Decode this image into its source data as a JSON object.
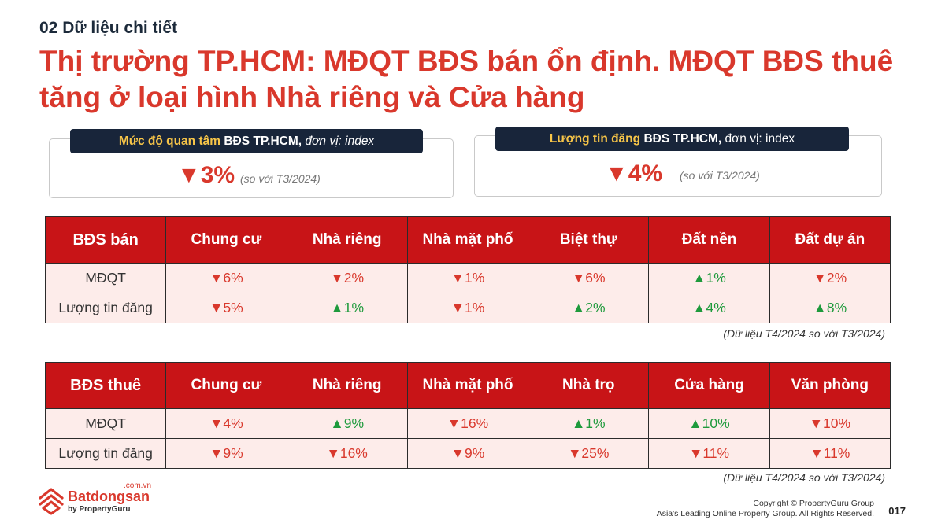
{
  "header": {
    "subtitle": "02 Dữ liệu chi tiết",
    "title": "Thị trường TP.HCM: MĐQT BĐS bán ổn định. MĐQT BĐS thuê tăng ở loại hình Nhà riêng và Cửa hàng"
  },
  "kpis": [
    {
      "label_highlight": "Mức độ quan tâm",
      "label_bold": "BĐS TP.HCM,",
      "label_rest": "đơn vị: index",
      "value": "▼3%",
      "note": "(so với T3/2024)"
    },
    {
      "label_highlight": "Lượng tin đăng",
      "label_bold": "BĐS TP.HCM,",
      "label_rest": "đơn vị: index",
      "value": "▼4%",
      "note": "(so với T3/2024)"
    }
  ],
  "sale_table": {
    "headers": [
      "BĐS bán",
      "Chung cư",
      "Nhà riêng",
      "Nhà mặt phố",
      "Biệt thự",
      "Đất nền",
      "Đất dự án"
    ],
    "rows": [
      {
        "label": "MĐQT",
        "cells": [
          {
            "text": "▼6%",
            "dir": "down"
          },
          {
            "text": "▼2%",
            "dir": "down"
          },
          {
            "text": "▼1%",
            "dir": "down"
          },
          {
            "text": "▼6%",
            "dir": "down"
          },
          {
            "text": "▲1%",
            "dir": "up"
          },
          {
            "text": "▼2%",
            "dir": "down"
          }
        ]
      },
      {
        "label": "Lượng tin đăng",
        "cells": [
          {
            "text": "▼5%",
            "dir": "down"
          },
          {
            "text": "▲1%",
            "dir": "up"
          },
          {
            "text": "▼1%",
            "dir": "down"
          },
          {
            "text": "▲2%",
            "dir": "up"
          },
          {
            "text": "▲4%",
            "dir": "up"
          },
          {
            "text": "▲8%",
            "dir": "up"
          }
        ]
      }
    ],
    "footnote": "(Dữ liệu T4/2024 so với T3/2024)"
  },
  "rent_table": {
    "headers": [
      "BĐS thuê",
      "Chung cư",
      "Nhà riêng",
      "Nhà mặt phố",
      "Nhà trọ",
      "Cửa hàng",
      "Văn phòng"
    ],
    "rows": [
      {
        "label": "MĐQT",
        "cells": [
          {
            "text": "▼4%",
            "dir": "down"
          },
          {
            "text": "▲9%",
            "dir": "up"
          },
          {
            "text": "▼16%",
            "dir": "down"
          },
          {
            "text": "▲1%",
            "dir": "up"
          },
          {
            "text": "▲10%",
            "dir": "up"
          },
          {
            "text": "▼10%",
            "dir": "down"
          }
        ]
      },
      {
        "label": "Lượng tin đăng",
        "cells": [
          {
            "text": "▼9%",
            "dir": "down"
          },
          {
            "text": "▼16%",
            "dir": "down"
          },
          {
            "text": "▼9%",
            "dir": "down"
          },
          {
            "text": "▼25%",
            "dir": "down"
          },
          {
            "text": "▼11%",
            "dir": "down"
          },
          {
            "text": "▼11%",
            "dir": "down"
          }
        ]
      }
    ],
    "footnote": "(Dữ liệu T4/2024 so với T3/2024)"
  },
  "footer": {
    "logo_name": "Batdongsan",
    "logo_tld": ".com.vn",
    "logo_by": "by PropertyGuru",
    "copyright_line1": "Copyright © PropertyGuru Group",
    "copyright_line2": "Asia's Leading Online Property Group. All Rights Reserved.",
    "page_number": "017"
  },
  "colors": {
    "brand_red": "#d9382c",
    "header_red": "#c81417",
    "navy": "#18253a",
    "up_green": "#1e9a3c",
    "highlight_yellow": "#f7c548"
  }
}
